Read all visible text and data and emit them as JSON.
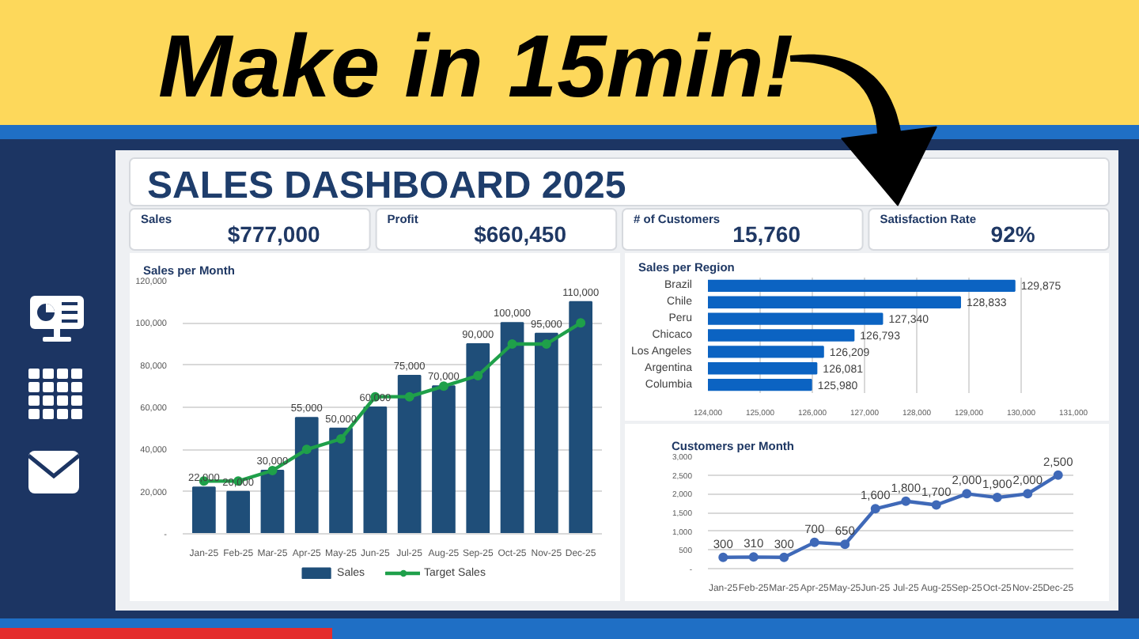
{
  "chart_data": [
    {
      "type": "other",
      "title": "Make in 15min!",
      "subtitle": "SALES DASHBOARD 2025",
      "annotations": [
        "Sales",
        "$777,000",
        "Profit",
        "$660,450",
        "# of Customers",
        "15,760",
        "Satisfaction Rate",
        "92%"
      ]
    },
    {
      "type": "bar",
      "title": "Sales per Month",
      "categories": [
        "Jan-25",
        "Feb-25",
        "Mar-25",
        "Apr-25",
        "May-25",
        "Jun-25",
        "Jul-25",
        "Aug-25",
        "Sep-25",
        "Oct-25",
        "Nov-25",
        "Dec-25"
      ],
      "series": [
        {
          "name": "Sales",
          "type": "bar",
          "color": "#1f4e79",
          "values": [
            22000,
            20000,
            30000,
            55000,
            50000,
            60000,
            75000,
            70000,
            90000,
            100000,
            95000,
            110000
          ],
          "value_labels": [
            "22,000",
            "20,000",
            "30,000",
            "55,000",
            "50,000",
            "60,000",
            "75,000",
            "70,000",
            "90,000",
            "100,000",
            "95,000",
            "110,000"
          ]
        },
        {
          "name": "Target Sales",
          "type": "line",
          "color": "#1fa04a",
          "values": [
            25000,
            25000,
            30000,
            40000,
            45000,
            65000,
            65000,
            70000,
            75000,
            90000,
            90000,
            100000
          ]
        }
      ],
      "ylim": [
        0,
        120000
      ],
      "yticks": [
        {
          "value": 0,
          "label": "-"
        },
        {
          "value": 20000,
          "label": "20,000"
        },
        {
          "value": 40000,
          "label": "40,000"
        },
        {
          "value": 60000,
          "label": "60,000"
        },
        {
          "value": 80000,
          "label": "80,000"
        },
        {
          "value": 100000,
          "label": "100,000"
        },
        {
          "value": 120000,
          "label": "120,000"
        }
      ],
      "grid": "y",
      "legend": "bottom",
      "marker": "circle"
    },
    {
      "type": "bar",
      "orientation": "horizontal",
      "title": "Sales per Region",
      "categories": [
        "Brazil",
        "Chile",
        "Peru",
        "Chicaco",
        "Los Angeles",
        "Argentina",
        "Columbia"
      ],
      "values": [
        129875,
        128833,
        127340,
        126793,
        126209,
        126081,
        125980
      ],
      "value_labels": [
        "129,875",
        "128,833",
        "127,340",
        "126,793",
        "126,209",
        "126,081",
        "125,980"
      ],
      "color": "#0b63c2",
      "xlim": [
        124000,
        131000
      ],
      "xticks": [
        {
          "value": 124000,
          "label": "124,000"
        },
        {
          "value": 125000,
          "label": "125,000"
        },
        {
          "value": 126000,
          "label": "126,000"
        },
        {
          "value": 127000,
          "label": "127,000"
        },
        {
          "value": 128000,
          "label": "128,000"
        },
        {
          "value": 129000,
          "label": "129,000"
        },
        {
          "value": 130000,
          "label": "130,000"
        },
        {
          "value": 131000,
          "label": "131,000"
        }
      ],
      "grid": "x"
    },
    {
      "type": "line",
      "title": "Customers per Month",
      "categories": [
        "Jan-25",
        "Feb-25",
        "Mar-25",
        "Apr-25",
        "May-25",
        "Jun-25",
        "Jul-25",
        "Aug-25",
        "Sep-25",
        "Oct-25",
        "Nov-25",
        "Dec-25"
      ],
      "values": [
        300,
        310,
        300,
        700,
        650,
        1600,
        1800,
        1700,
        2000,
        1900,
        2000,
        2500
      ],
      "value_labels": [
        "300",
        "310",
        "300",
        "700",
        "650",
        "1,600",
        "1,800",
        "1,700",
        "2,000",
        "1,900",
        "2,000",
        "2,500"
      ],
      "color": "#3f69b8",
      "ylim": [
        0,
        3000
      ],
      "yticks": [
        {
          "value": 0,
          "label": "-"
        },
        {
          "value": 500,
          "label": "500"
        },
        {
          "value": 1000,
          "label": "1,000"
        },
        {
          "value": 1500,
          "label": "1,500"
        },
        {
          "value": 2000,
          "label": "2,000"
        },
        {
          "value": 2500,
          "label": "2,500"
        },
        {
          "value": 3000,
          "label": "3,000"
        }
      ],
      "grid": "y",
      "marker": "circle"
    }
  ]
}
